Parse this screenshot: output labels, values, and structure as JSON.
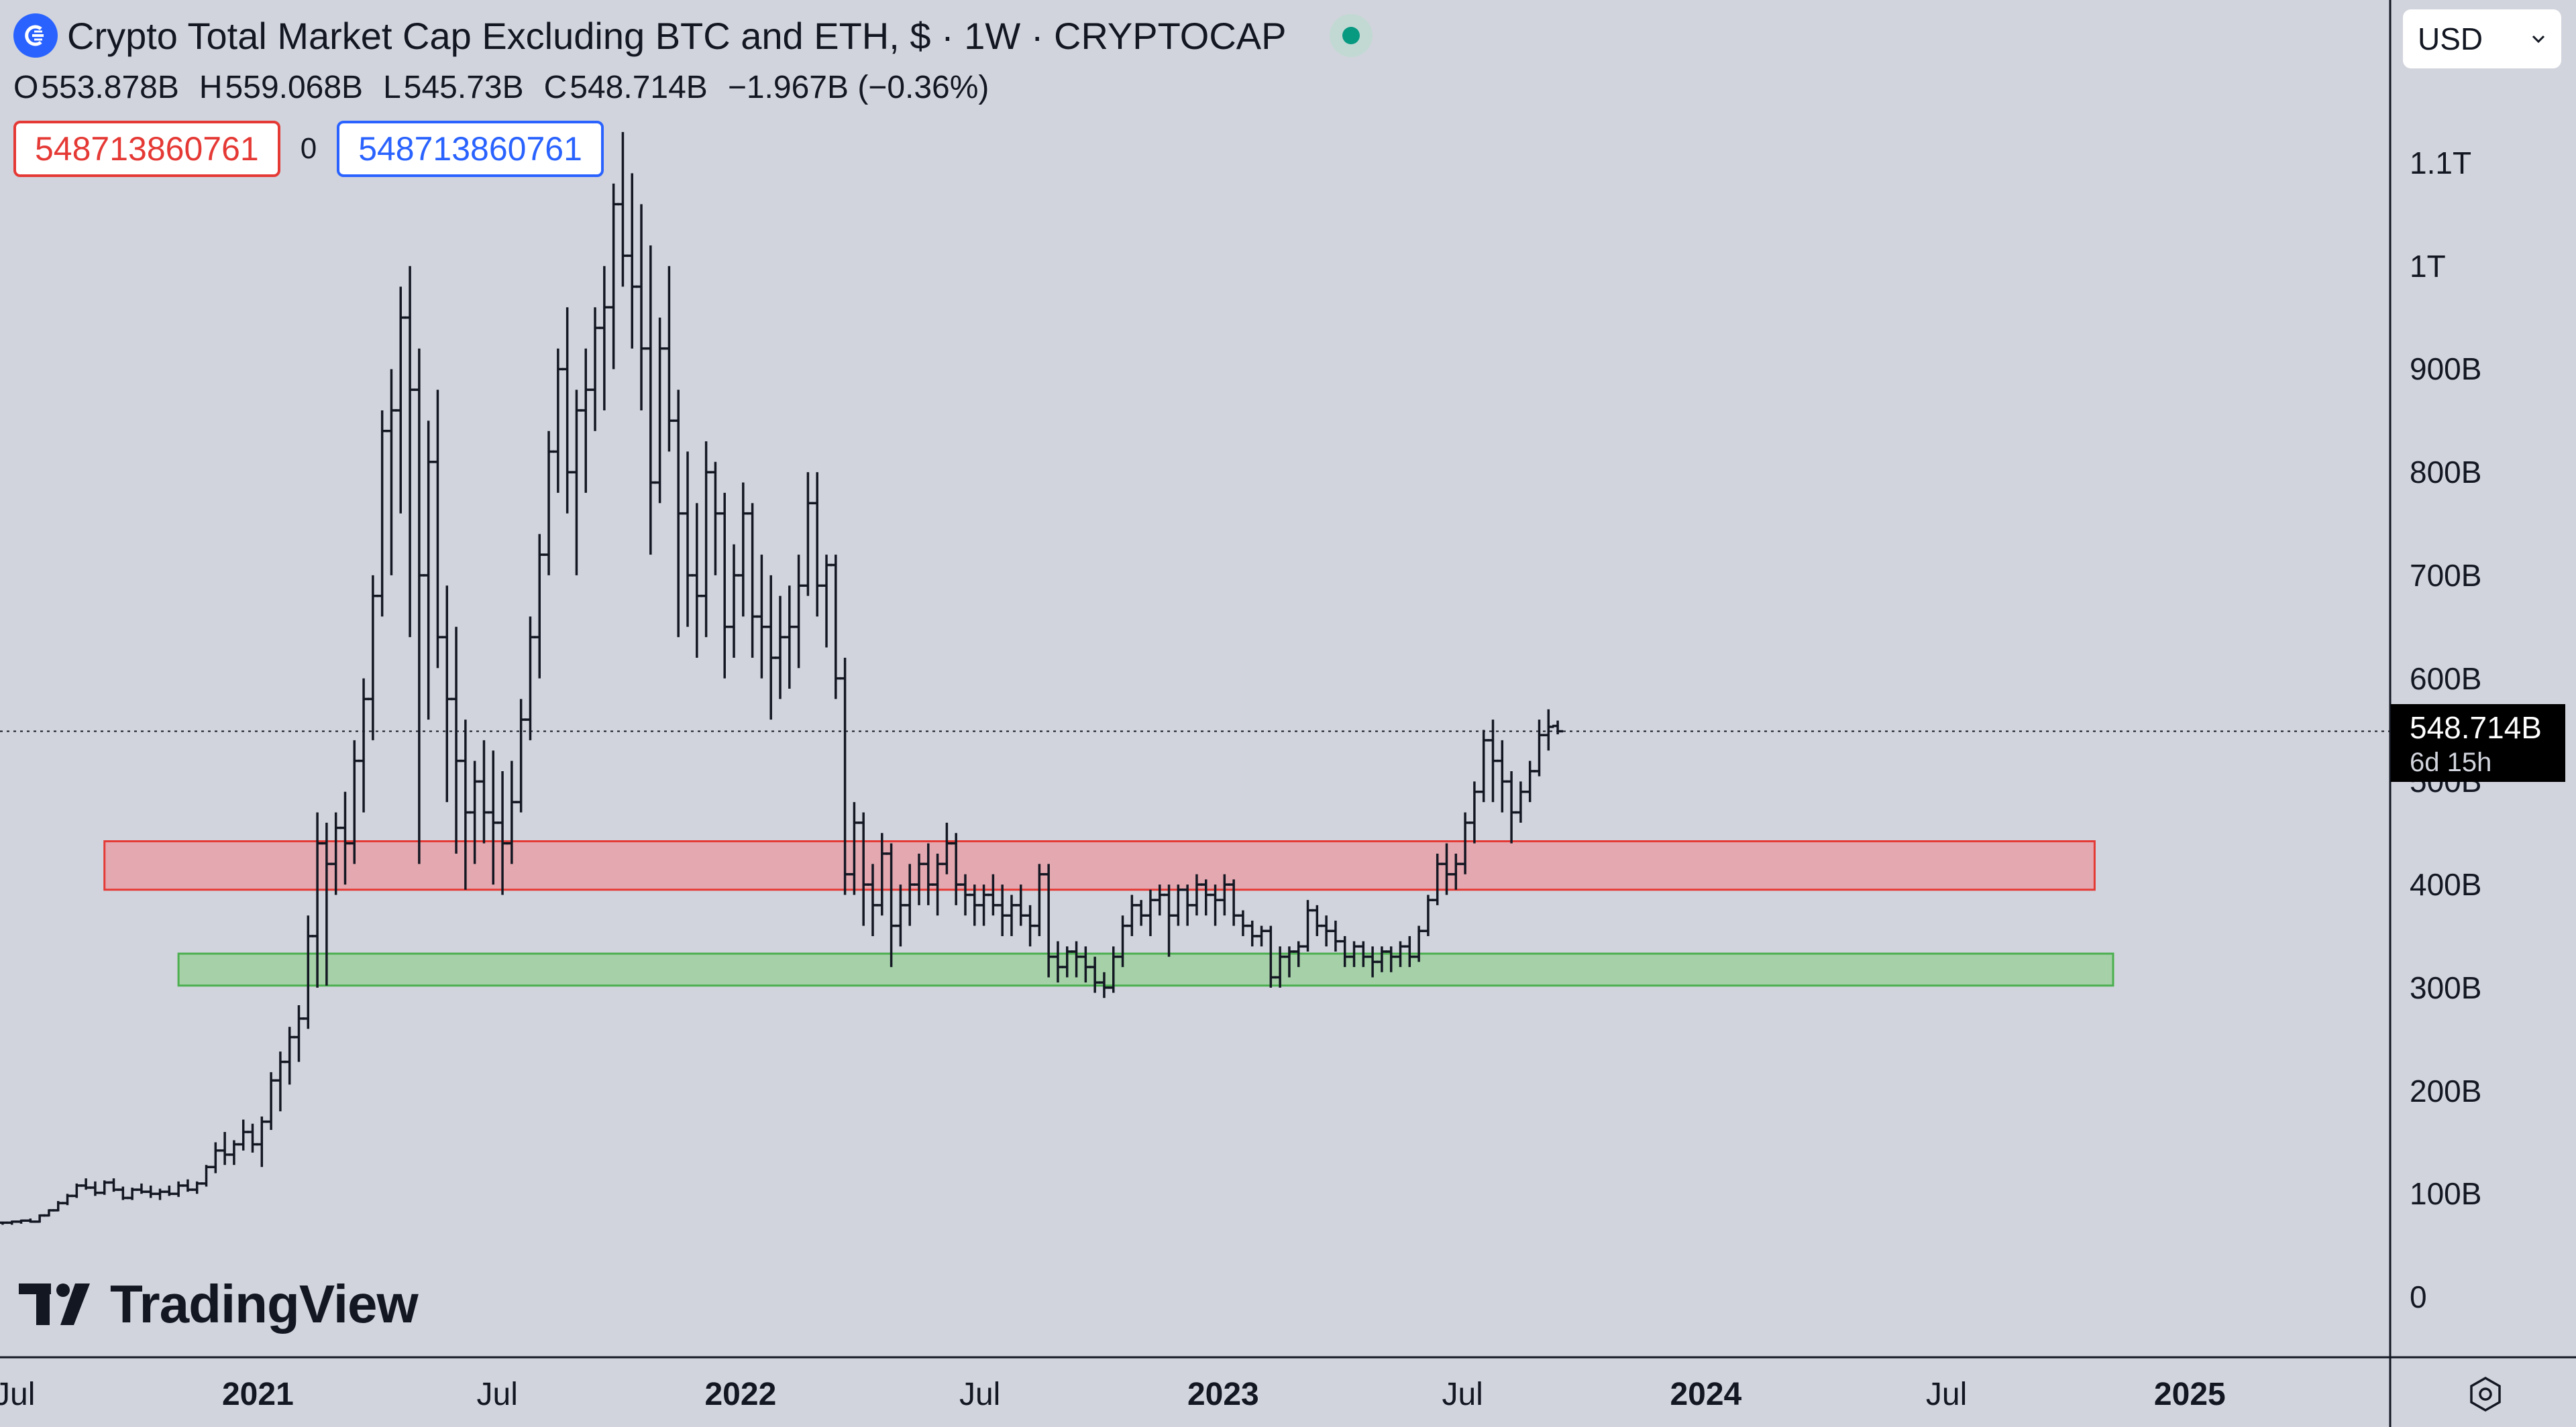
{
  "header": {
    "title": "Crypto Total Market Cap Excluding BTC and ETH, $ · 1W · CRYPTOCAP",
    "ohlc": [
      {
        "key": "O",
        "value": "553.878B"
      },
      {
        "key": "H",
        "value": "559.068B"
      },
      {
        "key": "L",
        "value": "545.73B"
      },
      {
        "key": "C",
        "value": "548.714B"
      }
    ],
    "change": "−1.967B (−0.36%)",
    "input_left": "548713860761",
    "input_mid": "0",
    "input_right": "548713860761"
  },
  "currency_select": {
    "value": "USD"
  },
  "last_price": {
    "label": "548.714B",
    "countdown": "6d 15h"
  },
  "brand": {
    "name": "TradingView"
  },
  "colors": {
    "background": "#d1d4dc",
    "candles": "#131722",
    "resistance_zone_fill": "#e8a0a8",
    "resistance_zone_border": "#e53935",
    "support_zone_fill": "#9dcf9f",
    "support_zone_border": "#4caf50",
    "accent": "#2962ff",
    "live": "#089981"
  },
  "icons": {
    "symbol_logo": "crypto-cap-logo-icon",
    "live_status": "live-dot-icon",
    "dropdown": "chevron-down-icon",
    "settings": "gear-hexagon-icon"
  },
  "chart_data": {
    "type": "ohlc-bar",
    "interval": "1W",
    "y_unit": "USD (B)",
    "ylim": [
      0,
      1150
    ],
    "y_ticks": [
      {
        "value": 0,
        "label": "0"
      },
      {
        "value": 100,
        "label": "100B"
      },
      {
        "value": 200,
        "label": "200B"
      },
      {
        "value": 300,
        "label": "300B"
      },
      {
        "value": 400,
        "label": "400B"
      },
      {
        "value": 500,
        "label": "500B"
      },
      {
        "value": 600,
        "label": "600B"
      },
      {
        "value": 700,
        "label": "700B"
      },
      {
        "value": 800,
        "label": "800B"
      },
      {
        "value": 900,
        "label": "900B"
      },
      {
        "value": 1000,
        "label": "1T"
      },
      {
        "value": 1100,
        "label": "1.1T"
      }
    ],
    "xlim": [
      "2020-06-20",
      "2025-05-31"
    ],
    "x_ticks": [
      {
        "date": "2020-07-01",
        "label": "Jul",
        "bold": false
      },
      {
        "date": "2021-01-01",
        "label": "2021",
        "bold": true
      },
      {
        "date": "2021-07-01",
        "label": "Jul",
        "bold": false
      },
      {
        "date": "2022-01-01",
        "label": "2022",
        "bold": true
      },
      {
        "date": "2022-07-01",
        "label": "Jul",
        "bold": false
      },
      {
        "date": "2023-01-01",
        "label": "2023",
        "bold": true
      },
      {
        "date": "2023-07-01",
        "label": "Jul",
        "bold": false
      },
      {
        "date": "2024-01-01",
        "label": "2024",
        "bold": true
      },
      {
        "date": "2024-07-01",
        "label": "Jul",
        "bold": false
      },
      {
        "date": "2025-01-01",
        "label": "2025",
        "bold": true
      }
    ],
    "last_price": 548.714,
    "zones": [
      {
        "name": "resistance",
        "from_date": "2020-09-07",
        "to_date": "2024-10-21",
        "low": 395,
        "high": 442
      },
      {
        "name": "support",
        "from_date": "2020-11-02",
        "to_date": "2024-11-04",
        "low": 302,
        "high": 333
      }
    ],
    "bars_start": "2020-06-22",
    "bars_ohlc": [
      [
        72,
        73,
        70,
        72
      ],
      [
        72,
        74,
        70,
        73
      ],
      [
        73,
        75,
        71,
        74
      ],
      [
        74,
        76,
        72,
        73
      ],
      [
        73,
        80,
        72,
        79
      ],
      [
        79,
        85,
        78,
        84
      ],
      [
        84,
        93,
        83,
        91
      ],
      [
        91,
        100,
        89,
        98
      ],
      [
        98,
        110,
        96,
        108
      ],
      [
        108,
        115,
        104,
        106
      ],
      [
        106,
        112,
        98,
        101
      ],
      [
        101,
        113,
        99,
        111
      ],
      [
        111,
        115,
        102,
        104
      ],
      [
        104,
        107,
        94,
        96
      ],
      [
        96,
        106,
        94,
        104
      ],
      [
        104,
        110,
        100,
        102
      ],
      [
        102,
        108,
        96,
        100
      ],
      [
        100,
        105,
        94,
        102
      ],
      [
        102,
        108,
        98,
        100
      ],
      [
        100,
        112,
        97,
        108
      ],
      [
        108,
        114,
        102,
        104
      ],
      [
        104,
        112,
        100,
        110
      ],
      [
        110,
        128,
        107,
        126
      ],
      [
        126,
        150,
        120,
        142
      ],
      [
        142,
        160,
        128,
        138
      ],
      [
        138,
        152,
        128,
        148
      ],
      [
        148,
        172,
        142,
        160
      ],
      [
        160,
        168,
        140,
        148
      ],
      [
        148,
        175,
        126,
        170
      ],
      [
        170,
        218,
        162,
        210
      ],
      [
        210,
        238,
        180,
        228
      ],
      [
        228,
        262,
        206,
        252
      ],
      [
        252,
        283,
        228,
        270
      ],
      [
        270,
        370,
        260,
        350
      ],
      [
        350,
        470,
        300,
        440
      ],
      [
        440,
        460,
        302,
        420
      ],
      [
        420,
        470,
        390,
        455
      ],
      [
        455,
        490,
        400,
        440
      ],
      [
        440,
        540,
        420,
        520
      ],
      [
        520,
        600,
        470,
        580
      ],
      [
        580,
        700,
        540,
        680
      ],
      [
        680,
        860,
        660,
        840
      ],
      [
        840,
        900,
        700,
        860
      ],
      [
        860,
        980,
        760,
        950
      ],
      [
        950,
        1000,
        640,
        880
      ],
      [
        880,
        920,
        420,
        700
      ],
      [
        700,
        850,
        560,
        810
      ],
      [
        810,
        880,
        610,
        640
      ],
      [
        640,
        690,
        480,
        580
      ],
      [
        580,
        650,
        430,
        520
      ],
      [
        520,
        560,
        395,
        470
      ],
      [
        470,
        520,
        420,
        500
      ],
      [
        500,
        540,
        440,
        470
      ],
      [
        470,
        530,
        400,
        460
      ],
      [
        460,
        510,
        390,
        440
      ],
      [
        440,
        520,
        420,
        480
      ],
      [
        480,
        580,
        470,
        560
      ],
      [
        560,
        660,
        540,
        640
      ],
      [
        640,
        740,
        600,
        720
      ],
      [
        720,
        840,
        700,
        820
      ],
      [
        820,
        920,
        780,
        900
      ],
      [
        900,
        960,
        760,
        800
      ],
      [
        800,
        880,
        700,
        860
      ],
      [
        860,
        920,
        780,
        880
      ],
      [
        880,
        960,
        840,
        940
      ],
      [
        940,
        1000,
        860,
        960
      ],
      [
        960,
        1080,
        900,
        1060
      ],
      [
        1060,
        1130,
        980,
        1010
      ],
      [
        1010,
        1090,
        920,
        980
      ],
      [
        980,
        1060,
        860,
        920
      ],
      [
        920,
        1020,
        720,
        790
      ],
      [
        790,
        950,
        770,
        920
      ],
      [
        920,
        1000,
        820,
        850
      ],
      [
        850,
        880,
        640,
        760
      ],
      [
        760,
        820,
        650,
        700
      ],
      [
        700,
        770,
        620,
        680
      ],
      [
        680,
        830,
        640,
        800
      ],
      [
        800,
        810,
        700,
        760
      ],
      [
        760,
        780,
        600,
        650
      ],
      [
        650,
        730,
        620,
        700
      ],
      [
        700,
        790,
        660,
        760
      ],
      [
        760,
        770,
        620,
        660
      ],
      [
        660,
        720,
        600,
        650
      ],
      [
        650,
        700,
        560,
        620
      ],
      [
        620,
        680,
        580,
        640
      ],
      [
        640,
        690,
        590,
        650
      ],
      [
        650,
        720,
        610,
        690
      ],
      [
        690,
        800,
        680,
        770
      ],
      [
        770,
        800,
        660,
        690
      ],
      [
        690,
        720,
        630,
        710
      ],
      [
        710,
        720,
        580,
        600
      ],
      [
        600,
        620,
        390,
        410
      ],
      [
        410,
        480,
        390,
        460
      ],
      [
        460,
        470,
        360,
        400
      ],
      [
        400,
        420,
        350,
        380
      ],
      [
        380,
        450,
        370,
        430
      ],
      [
        430,
        440,
        320,
        360
      ],
      [
        360,
        400,
        340,
        380
      ],
      [
        380,
        420,
        360,
        400
      ],
      [
        400,
        430,
        380,
        420
      ],
      [
        420,
        440,
        380,
        400
      ],
      [
        400,
        430,
        370,
        420
      ],
      [
        420,
        460,
        410,
        440
      ],
      [
        440,
        450,
        380,
        400
      ],
      [
        400,
        410,
        370,
        390
      ],
      [
        390,
        400,
        360,
        380
      ],
      [
        380,
        400,
        360,
        390
      ],
      [
        390,
        410,
        370,
        380
      ],
      [
        380,
        400,
        350,
        370
      ],
      [
        370,
        390,
        350,
        380
      ],
      [
        380,
        400,
        360,
        370
      ],
      [
        370,
        380,
        340,
        360
      ],
      [
        360,
        420,
        350,
        410
      ],
      [
        410,
        420,
        310,
        330
      ],
      [
        330,
        345,
        305,
        320
      ],
      [
        320,
        340,
        310,
        335
      ],
      [
        335,
        345,
        310,
        330
      ],
      [
        330,
        340,
        305,
        320
      ],
      [
        320,
        330,
        295,
        305
      ],
      [
        305,
        315,
        290,
        300
      ],
      [
        300,
        340,
        295,
        330
      ],
      [
        330,
        370,
        320,
        360
      ],
      [
        360,
        390,
        350,
        380
      ],
      [
        380,
        385,
        360,
        370
      ],
      [
        370,
        395,
        350,
        385
      ],
      [
        385,
        400,
        370,
        390
      ],
      [
        390,
        400,
        330,
        370
      ],
      [
        370,
        400,
        360,
        395
      ],
      [
        395,
        400,
        360,
        380
      ],
      [
        380,
        410,
        370,
        400
      ],
      [
        400,
        405,
        370,
        390
      ],
      [
        390,
        400,
        360,
        385
      ],
      [
        385,
        410,
        370,
        400
      ],
      [
        400,
        405,
        360,
        370
      ],
      [
        370,
        375,
        350,
        360
      ],
      [
        360,
        365,
        340,
        350
      ],
      [
        350,
        360,
        340,
        355
      ],
      [
        355,
        360,
        300,
        310
      ],
      [
        310,
        340,
        300,
        330
      ],
      [
        330,
        340,
        310,
        335
      ],
      [
        335,
        345,
        320,
        340
      ],
      [
        340,
        385,
        335,
        375
      ],
      [
        375,
        380,
        350,
        360
      ],
      [
        360,
        370,
        340,
        355
      ],
      [
        355,
        365,
        335,
        345
      ],
      [
        345,
        350,
        320,
        330
      ],
      [
        330,
        345,
        320,
        340
      ],
      [
        340,
        345,
        320,
        330
      ],
      [
        330,
        340,
        310,
        325
      ],
      [
        325,
        340,
        315,
        335
      ],
      [
        335,
        340,
        315,
        330
      ],
      [
        330,
        345,
        320,
        340
      ],
      [
        340,
        350,
        320,
        330
      ],
      [
        330,
        360,
        325,
        355
      ],
      [
        355,
        390,
        350,
        385
      ],
      [
        385,
        430,
        380,
        420
      ],
      [
        420,
        440,
        390,
        410
      ],
      [
        410,
        430,
        395,
        420
      ],
      [
        420,
        470,
        410,
        460
      ],
      [
        460,
        500,
        440,
        490
      ],
      [
        490,
        550,
        480,
        540
      ],
      [
        540,
        560,
        480,
        520
      ],
      [
        520,
        540,
        470,
        500
      ],
      [
        500,
        510,
        440,
        470
      ],
      [
        470,
        500,
        460,
        490
      ],
      [
        490,
        520,
        480,
        510
      ],
      [
        510,
        560,
        505,
        545
      ],
      [
        545,
        570,
        530,
        553
      ],
      [
        553.878,
        559.068,
        545.73,
        548.714
      ]
    ]
  }
}
